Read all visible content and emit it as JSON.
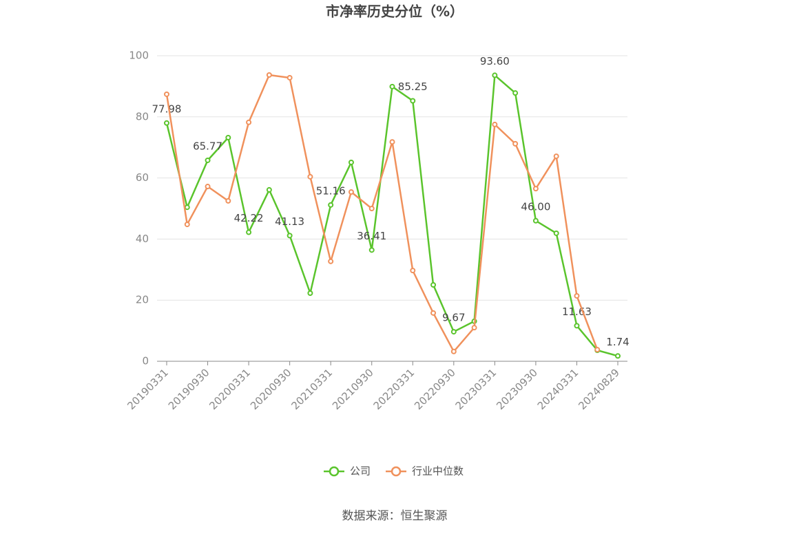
{
  "chart_data": {
    "type": "line",
    "title": "市净率历史分位（%）",
    "categories": [
      "20190331",
      null,
      "20190930",
      null,
      "20200331",
      null,
      "20200930",
      null,
      "20210331",
      null,
      "20210930",
      null,
      "20220331",
      null,
      "20220930",
      null,
      "20230331",
      null,
      "20230930",
      null,
      "20240331",
      null,
      "20240829"
    ],
    "series": [
      {
        "name": "公司",
        "color": "#5ac42c",
        "values": [
          77.98,
          50.4,
          65.77,
          73.2,
          42.22,
          56.1,
          41.13,
          22.3,
          51.16,
          65.1,
          36.41,
          89.9,
          85.25,
          25,
          9.67,
          13.1,
          93.6,
          87.8,
          46.0,
          41.9,
          11.63,
          3.6,
          1.74
        ],
        "value_labels": [
          "77.98",
          null,
          "65.77",
          null,
          "42.22",
          null,
          "41.13",
          null,
          "51.16",
          null,
          "36.41",
          null,
          "85.25",
          null,
          "9.67",
          null,
          "93.60",
          null,
          "46.00",
          null,
          "11.63",
          null,
          "1.74"
        ]
      },
      {
        "name": "行业中位数",
        "color": "#f0915c",
        "values": [
          87.4,
          44.8,
          57.2,
          52.5,
          78.2,
          93.7,
          92.8,
          60.4,
          32.7,
          55.4,
          50,
          71.8,
          29.7,
          15.8,
          3.2,
          11,
          77.5,
          71.2,
          56.5,
          67.1,
          21.4,
          3.8,
          null
        ]
      }
    ],
    "ylim": [
      0,
      100
    ],
    "yticks": [
      0,
      20,
      40,
      60,
      80,
      100
    ],
    "grid": true,
    "source": "数据来源：恒生聚源"
  }
}
